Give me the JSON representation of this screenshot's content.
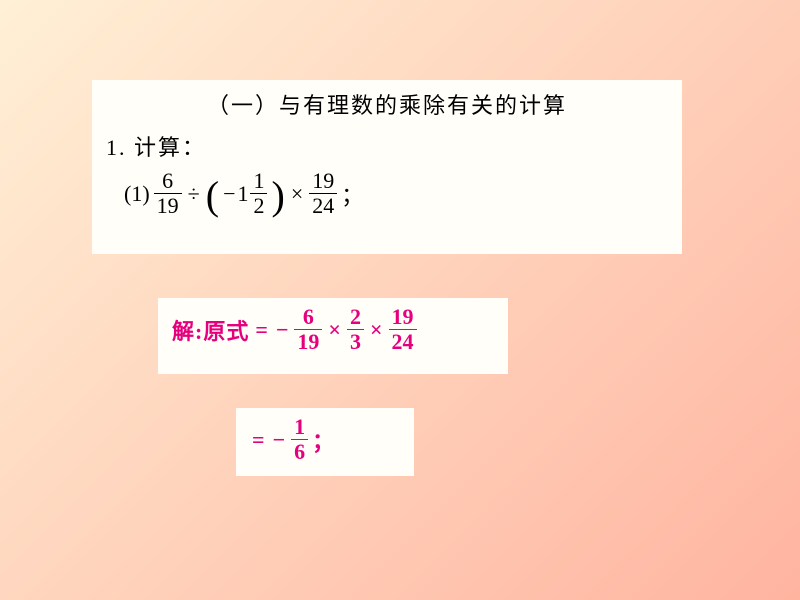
{
  "background": {
    "gradient_from": "#fff0d6",
    "gradient_to": "#ffb4a0",
    "angle_deg": 135
  },
  "box_bg": "#fffef9",
  "text_color": "#000000",
  "solution_color": "#e6007e",
  "title": "（一）与有理数的乘除有关的计算",
  "calc_label": "1. 计算：",
  "problem": {
    "index": "(1)",
    "frac1": {
      "num": "6",
      "den": "19"
    },
    "op_div": "÷",
    "lparen": "(",
    "neg_sign": "−",
    "mixed_whole": "1",
    "mixed_frac": {
      "num": "1",
      "den": "2"
    },
    "rparen": ")",
    "op_mul": "×",
    "frac2": {
      "num": "19",
      "den": "24"
    },
    "semi": "；"
  },
  "step1": {
    "label": "解:原式",
    "eq": "=",
    "neg": "−",
    "f1": {
      "num": "6",
      "den": "19"
    },
    "mul1": "×",
    "f2": {
      "num": "2",
      "den": "3"
    },
    "mul2": "×",
    "f3": {
      "num": "19",
      "den": "24"
    }
  },
  "step2": {
    "eq": "=",
    "neg": "−",
    "f": {
      "num": "1",
      "den": "6"
    },
    "semi": "；"
  }
}
